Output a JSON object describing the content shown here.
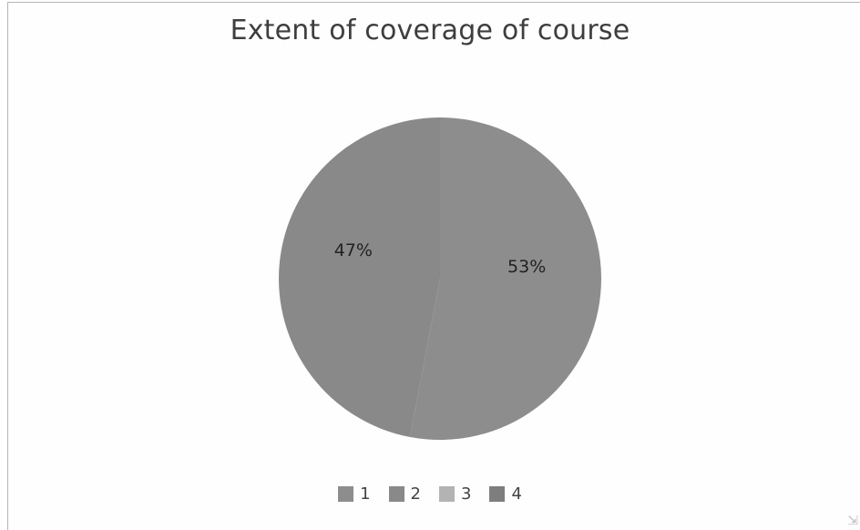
{
  "chart_data": {
    "type": "pie",
    "title": "Extent of coverage of course",
    "categories": [
      "1",
      "2",
      "3",
      "4"
    ],
    "values": [
      53,
      47,
      0,
      0
    ],
    "data_labels": [
      "53%",
      "47%",
      "",
      ""
    ],
    "colors": [
      "#8d8d8d",
      "#898989",
      "#b3b3b3",
      "#7e7e7e"
    ],
    "legend_position": "bottom",
    "grid": false
  }
}
